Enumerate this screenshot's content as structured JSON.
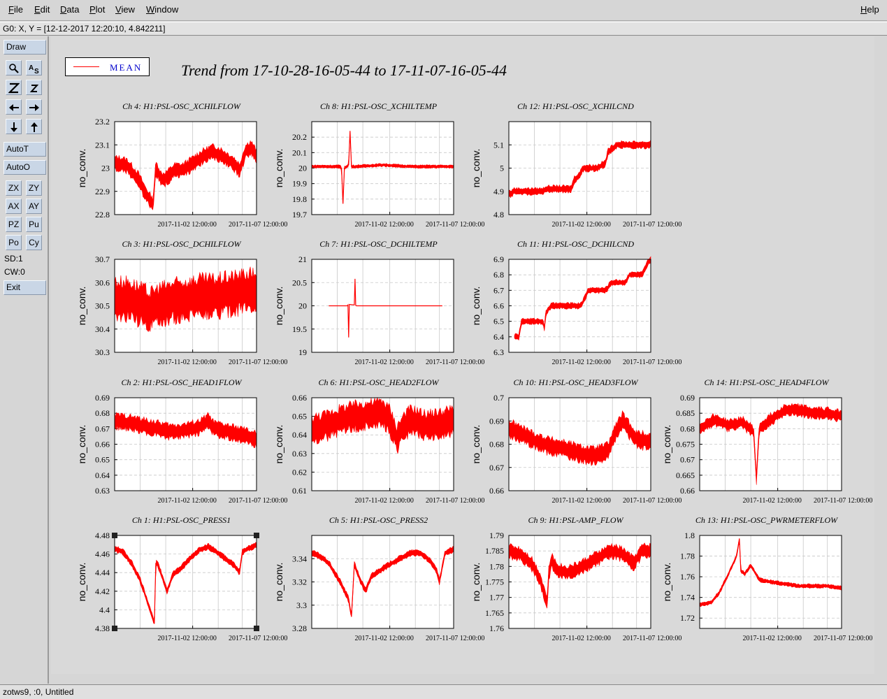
{
  "menu": {
    "file": "File",
    "edit": "Edit",
    "data": "Data",
    "plot": "Plot",
    "view": "View",
    "window": "Window",
    "help": "Help"
  },
  "coord_readout": "G0: X, Y = [12-12-2017 12:20:10, 4.842211]",
  "toolbar": {
    "draw": "Draw",
    "autot": "AutoT",
    "autoo": "AutoO",
    "zx": "ZX",
    "zy": "ZY",
    "ax": "AX",
    "ay": "AY",
    "pz": "PZ",
    "pu": "Pu",
    "po": "Po",
    "cy": "Cy",
    "sd": "SD:1",
    "cw": "CW:0",
    "exit": "Exit"
  },
  "legend": {
    "label": "MEAN",
    "color": "#ff0000"
  },
  "title": "Trend from 17-10-28-16-05-44 to 17-11-07-16-05-44",
  "status": "zotws9, :0, Untitled",
  "chart_data": [
    {
      "type": "line",
      "title": "Ch 4: H1:PSL-OSC_XCHILFLOW",
      "ylabel": "no_conv.",
      "ylim": [
        22.8,
        23.2
      ],
      "yticks": [
        "23.2",
        "23.1",
        "23",
        "22.9",
        "22.8"
      ],
      "xticks": [
        "2017-11-02 12:00:00",
        "2017-11-07 12:00:00"
      ],
      "color": "#ff0000",
      "x": [
        0,
        0.04,
        0.09,
        0.13,
        0.17,
        0.21,
        0.25,
        0.27,
        0.29,
        0.31,
        0.33,
        0.37,
        0.42,
        0.48,
        0.55,
        0.62,
        0.69,
        0.74,
        0.79,
        0.84,
        0.88,
        0.92,
        0.96,
        1.0
      ],
      "y": [
        23.02,
        23.02,
        23.01,
        22.98,
        22.95,
        22.9,
        22.86,
        22.84,
        23.0,
        22.98,
        22.95,
        22.96,
        22.99,
        22.99,
        23.02,
        23.05,
        23.07,
        23.06,
        23.04,
        23.02,
        22.99,
        23.07,
        23.09,
        23.05
      ],
      "band": 0.025
    },
    {
      "type": "line",
      "title": "Ch 8: H1:PSL-OSC_XCHILTEMP",
      "ylabel": "no_conv.",
      "ylim": [
        19.7,
        20.3
      ],
      "yticks": [
        "20.2",
        "20.1",
        "20",
        "19.9",
        "19.8",
        "19.7"
      ],
      "xticks": [
        "2017-11-02 12:00:00",
        "2017-11-07 12:00:00"
      ],
      "color": "#ff0000",
      "x": [
        0,
        0.2,
        0.21,
        0.22,
        0.23,
        0.26,
        0.27,
        0.28,
        0.3,
        0.5,
        0.7,
        1.0
      ],
      "y": [
        20.01,
        20.01,
        20.0,
        19.77,
        20.0,
        20.02,
        20.24,
        20.01,
        20.01,
        20.02,
        20.01,
        20.01
      ],
      "band": 0.008
    },
    {
      "type": "line",
      "title": "Ch 12: H1:PSL-OSC_XCHILCND",
      "ylabel": "no_conv.",
      "ylim": [
        4.8,
        5.2
      ],
      "yticks": [
        "5.1",
        "5",
        "4.9",
        "4.8"
      ],
      "xticks": [
        "2017-11-02 12:00:00",
        "2017-11-07 12:00:00"
      ],
      "color": "#ff0000",
      "x": [
        0,
        0.02,
        0.03,
        0.24,
        0.26,
        0.44,
        0.46,
        0.5,
        0.52,
        0.6,
        0.62,
        0.68,
        0.7,
        0.74,
        0.76,
        0.84,
        0.86,
        0.92,
        0.93,
        0.99,
        1.0
      ],
      "y": [
        4.89,
        4.89,
        4.9,
        4.9,
        4.91,
        4.91,
        4.95,
        4.97,
        5.0,
        5.0,
        5.0,
        5.02,
        5.07,
        5.09,
        5.1,
        5.1,
        5.1,
        5.1,
        5.1,
        5.1,
        5.11
      ],
      "band": 0.012
    },
    {
      "type": "line",
      "title": "Ch 3: H1:PSL-OSC_DCHILFLOW",
      "ylabel": "no_conv.",
      "ylim": [
        30.3,
        30.7
      ],
      "yticks": [
        "30.7",
        "30.6",
        "30.5",
        "30.4",
        "30.3"
      ],
      "xticks": [
        "2017-11-02 12:00:00",
        "2017-11-07 12:00:00"
      ],
      "color": "#ff0000",
      "x": [
        0,
        0.1,
        0.2,
        0.25,
        0.3,
        0.4,
        0.5,
        0.6,
        0.7,
        0.8,
        0.9,
        1.0
      ],
      "y": [
        30.53,
        30.53,
        30.5,
        30.48,
        30.5,
        30.52,
        30.53,
        30.54,
        30.54,
        30.55,
        30.56,
        30.57
      ],
      "band": 0.07
    },
    {
      "type": "line",
      "title": "Ch 7: H1:PSL-OSC_DCHILTEMP",
      "ylabel": "no_conv.",
      "ylim": [
        19,
        21
      ],
      "yticks": [
        "21",
        "20.5",
        "20",
        "19.5",
        "19"
      ],
      "xticks": [
        "2017-11-02 12:00:00",
        "2017-11-07 12:00:00"
      ],
      "color": "#ff0000",
      "x": [
        0.12,
        0.25,
        0.255,
        0.26,
        0.265,
        0.3,
        0.305,
        0.31,
        0.315,
        0.4,
        0.6,
        0.8,
        0.92
      ],
      "y": [
        20.0,
        20.0,
        20.02,
        19.32,
        20.03,
        20.02,
        20.58,
        20.01,
        20.0,
        20.0,
        20.0,
        20.0,
        20.0
      ],
      "band": 0.0
    },
    {
      "type": "line",
      "title": "Ch 11: H1:PSL-OSC_DCHILCND",
      "ylabel": "no_conv.",
      "ylim": [
        6.3,
        6.9
      ],
      "yticks": [
        "6.9",
        "6.8",
        "6.7",
        "6.6",
        "6.5",
        "6.4",
        "6.3"
      ],
      "xticks": [
        "2017-11-02 12:00:00",
        "2017-11-07 12:00:00"
      ],
      "color": "#ff0000",
      "x": [
        0.04,
        0.07,
        0.09,
        0.24,
        0.25,
        0.26,
        0.28,
        0.3,
        0.34,
        0.5,
        0.52,
        0.54,
        0.56,
        0.68,
        0.7,
        0.72,
        0.74,
        0.82,
        0.85,
        0.88,
        0.94,
        0.98,
        1.0
      ],
      "y": [
        6.4,
        6.4,
        6.5,
        6.5,
        6.45,
        6.55,
        6.58,
        6.6,
        6.6,
        6.6,
        6.62,
        6.66,
        6.7,
        6.7,
        6.72,
        6.75,
        6.75,
        6.75,
        6.8,
        6.8,
        6.8,
        6.88,
        6.9
      ],
      "band": 0.015
    },
    {
      "type": "line",
      "title": "Ch 2: H1:PSL-OSC_HEAD1FLOW",
      "ylabel": "no_conv.",
      "ylim": [
        0.63,
        0.69
      ],
      "yticks": [
        "0.69",
        "0.68",
        "0.67",
        "0.66",
        "0.65",
        "0.64",
        "0.63"
      ],
      "xticks": [
        "2017-11-02 12:00:00",
        "2017-11-07 12:00:00"
      ],
      "color": "#ff0000",
      "x": [
        0,
        0.1,
        0.2,
        0.3,
        0.4,
        0.5,
        0.6,
        0.66,
        0.7,
        0.8,
        0.9,
        1.0
      ],
      "y": [
        0.675,
        0.674,
        0.672,
        0.67,
        0.668,
        0.669,
        0.671,
        0.675,
        0.67,
        0.668,
        0.666,
        0.663
      ],
      "band": 0.004
    },
    {
      "type": "line",
      "title": "Ch 6: H1:PSL-OSC_HEAD2FLOW",
      "ylabel": "no_conv.",
      "ylim": [
        0.61,
        0.66
      ],
      "yticks": [
        "0.66",
        "0.65",
        "0.64",
        "0.63",
        "0.62",
        "0.61"
      ],
      "xticks": [
        "2017-11-02 12:00:00",
        "2017-11-07 12:00:00"
      ],
      "color": "#ff0000",
      "x": [
        0,
        0.1,
        0.2,
        0.3,
        0.4,
        0.5,
        0.55,
        0.6,
        0.65,
        0.7,
        0.8,
        0.9,
        1.0
      ],
      "y": [
        0.643,
        0.645,
        0.648,
        0.65,
        0.651,
        0.652,
        0.648,
        0.638,
        0.645,
        0.648,
        0.645,
        0.646,
        0.648
      ],
      "band": 0.006
    },
    {
      "type": "line",
      "title": "Ch 10: H1:PSL-OSC_HEAD3FLOW",
      "ylabel": "no_conv.",
      "ylim": [
        0.66,
        0.7
      ],
      "yticks": [
        "0.7",
        "0.69",
        "0.68",
        "0.67",
        "0.66"
      ],
      "xticks": [
        "2017-11-02 12:00:00",
        "2017-11-07 12:00:00"
      ],
      "color": "#ff0000",
      "x": [
        0,
        0.1,
        0.2,
        0.3,
        0.4,
        0.5,
        0.6,
        0.7,
        0.75,
        0.8,
        0.9,
        1.0
      ],
      "y": [
        0.687,
        0.684,
        0.681,
        0.679,
        0.678,
        0.676,
        0.675,
        0.677,
        0.685,
        0.69,
        0.682,
        0.681
      ],
      "band": 0.003
    },
    {
      "type": "line",
      "title": "Ch 14: H1:PSL-OSC_HEAD4FLOW",
      "ylabel": "no_conv.",
      "ylim": [
        0.66,
        0.69
      ],
      "yticks": [
        "0.69",
        "0.685",
        "0.68",
        "0.675",
        "0.67",
        "0.665",
        "0.66"
      ],
      "xticks": [
        "2017-11-02 12:00:00",
        "2017-11-07 12:00:00"
      ],
      "color": "#ff0000",
      "x": [
        0,
        0.1,
        0.2,
        0.3,
        0.38,
        0.4,
        0.42,
        0.5,
        0.6,
        0.7,
        0.8,
        0.9,
        1.0
      ],
      "y": [
        0.68,
        0.683,
        0.681,
        0.682,
        0.679,
        0.664,
        0.68,
        0.683,
        0.686,
        0.686,
        0.685,
        0.685,
        0.684
      ],
      "band": 0.0015
    },
    {
      "type": "line",
      "title": "Ch 1: H1:PSL-OSC_PRESS1",
      "ylabel": "no_conv.",
      "ylim": [
        4.38,
        4.48
      ],
      "yticks": [
        "4.48",
        "4.46",
        "4.44",
        "4.42",
        "4.4",
        "4.38"
      ],
      "xticks": [
        "2017-11-02 12:00:00",
        "2017-11-07 12:00:00"
      ],
      "color": "#ff0000",
      "x": [
        0,
        0.06,
        0.12,
        0.18,
        0.24,
        0.28,
        0.29,
        0.3,
        0.33,
        0.37,
        0.41,
        0.47,
        0.53,
        0.6,
        0.66,
        0.72,
        0.78,
        0.84,
        0.88,
        0.9,
        0.94,
        0.98,
        1.0
      ],
      "y": [
        4.466,
        4.462,
        4.45,
        4.432,
        4.405,
        4.385,
        4.45,
        4.45,
        4.438,
        4.42,
        4.438,
        4.445,
        4.455,
        4.465,
        4.468,
        4.462,
        4.455,
        4.448,
        4.44,
        4.462,
        4.466,
        4.468,
        4.47
      ],
      "band": 0.0025,
      "selected": true
    },
    {
      "type": "line",
      "title": "Ch 5: H1:PSL-OSC_PRESS2",
      "ylabel": "no_conv.",
      "ylim": [
        3.28,
        3.36
      ],
      "yticks": [
        "3.34",
        "3.32",
        "3.3",
        "3.28"
      ],
      "xticks": [
        "2017-11-02 12:00:00",
        "2017-11-07 12:00:00"
      ],
      "color": "#ff0000",
      "x": [
        0,
        0.06,
        0.12,
        0.2,
        0.26,
        0.28,
        0.3,
        0.34,
        0.38,
        0.42,
        0.48,
        0.55,
        0.62,
        0.7,
        0.76,
        0.82,
        0.88,
        0.9,
        0.94,
        1.0
      ],
      "y": [
        3.345,
        3.342,
        3.336,
        3.32,
        3.305,
        3.29,
        3.335,
        3.322,
        3.312,
        3.325,
        3.33,
        3.335,
        3.34,
        3.345,
        3.345,
        3.34,
        3.33,
        3.32,
        3.345,
        3.348
      ],
      "band": 0.002
    },
    {
      "type": "line",
      "title": "Ch 9: H1:PSL-AMP_FLOW",
      "ylabel": "no_conv.",
      "ylim": [
        1.76,
        1.79
      ],
      "yticks": [
        "1.79",
        "1.785",
        "1.78",
        "1.775",
        "1.77",
        "1.765",
        "1.76"
      ],
      "xticks": [
        "2017-11-02 12:00:00",
        "2017-11-07 12:00:00"
      ],
      "color": "#ff0000",
      "x": [
        0,
        0.08,
        0.16,
        0.22,
        0.27,
        0.28,
        0.3,
        0.34,
        0.4,
        0.48,
        0.56,
        0.64,
        0.72,
        0.8,
        0.88,
        0.94,
        1.0
      ],
      "y": [
        1.785,
        1.784,
        1.781,
        1.776,
        1.768,
        1.777,
        1.782,
        1.779,
        1.778,
        1.779,
        1.781,
        1.783,
        1.785,
        1.784,
        1.781,
        1.785,
        1.785
      ],
      "band": 0.0018
    },
    {
      "type": "line",
      "title": "Ch 13: H1:PSL-OSC_PWRMETERFLOW",
      "ylabel": "no_conv.",
      "ylim": [
        1.71,
        1.8
      ],
      "yticks": [
        "1.8",
        "1.78",
        "1.76",
        "1.74",
        "1.72"
      ],
      "xticks": [
        "2017-11-02 12:00:00",
        "2017-11-07 12:00:00"
      ],
      "color": "#ff0000",
      "x": [
        0,
        0.08,
        0.14,
        0.2,
        0.26,
        0.28,
        0.29,
        0.32,
        0.36,
        0.42,
        0.5,
        0.6,
        0.7,
        0.8,
        0.9,
        1.0
      ],
      "y": [
        1.733,
        1.735,
        1.745,
        1.762,
        1.78,
        1.797,
        1.765,
        1.763,
        1.771,
        1.757,
        1.755,
        1.753,
        1.751,
        1.751,
        1.751,
        1.749
      ],
      "band": 0.0015
    }
  ]
}
